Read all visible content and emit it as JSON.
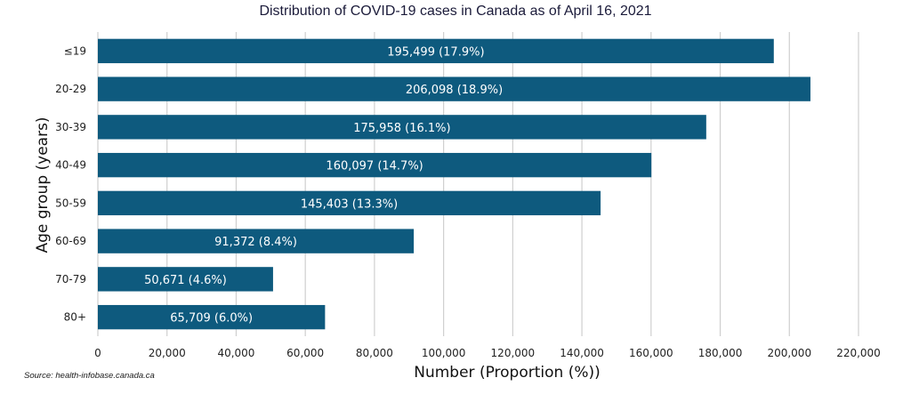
{
  "chart_data": {
    "type": "bar",
    "orientation": "horizontal",
    "title": "Distribution of COVID-19 cases in Canada as of April 16, 2021",
    "xlabel": "Number (Proportion (%))",
    "ylabel": "Age group (years)",
    "categories": [
      "≤19",
      "20-29",
      "30-39",
      "40-49",
      "50-59",
      "60-69",
      "70-79",
      "80+"
    ],
    "values": [
      195499,
      206098,
      175958,
      160097,
      145403,
      91372,
      50671,
      65709
    ],
    "data_labels": [
      "195,499 (17.9%)",
      "206,098 (18.9%)",
      "175,958 (16.1%)",
      "160,097 (14.7%)",
      "145,403 (13.3%)",
      "91,372 (8.4%)",
      "50,671 (4.6%)",
      "65,709 (6.0%)"
    ],
    "xlim": [
      0,
      220000
    ],
    "xticks": [
      0,
      20000,
      40000,
      60000,
      80000,
      100000,
      120000,
      140000,
      160000,
      180000,
      200000,
      220000
    ],
    "xtick_labels": [
      "0",
      "20,000",
      "40,000",
      "60,000",
      "80,000",
      "100,000",
      "120,000",
      "140,000",
      "160,000",
      "180,000",
      "200,000",
      "220,000"
    ],
    "grid": "vertical",
    "bar_color": "#0e5a7e",
    "source": "Source: health-infobase.canada.ca"
  }
}
